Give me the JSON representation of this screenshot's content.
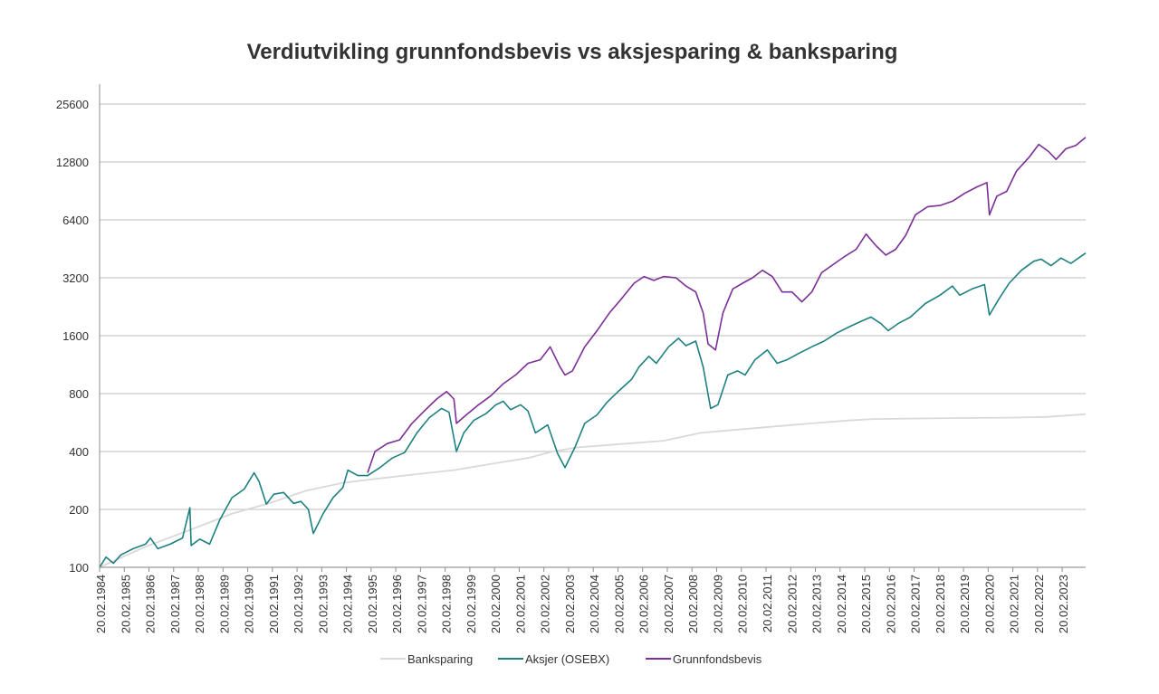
{
  "chart_data": {
    "type": "line",
    "title": "Verdiutvikling grunnfondsbevis vs aksjesparing & banksparing",
    "xlabel": "",
    "ylabel": "",
    "y_scale": "log2",
    "ylim": [
      100,
      25600
    ],
    "y_ticks": [
      "100",
      "200",
      "400",
      "800",
      "1600",
      "3200",
      "6400",
      "12800",
      "25600"
    ],
    "xlim": [
      1984.14,
      2024.1
    ],
    "x_ticks": [
      "20.02.1984",
      "20.02.1985",
      "20.02.1986",
      "20.02.1987",
      "20.02.1988",
      "20.02.1989",
      "20.02.1990",
      "20.02.1991",
      "20.02.1992",
      "20.02.1993",
      "20.02.1994",
      "20.02.1995",
      "20.02.1996",
      "20.02.1997",
      "20.02.1998",
      "20.02.1999",
      "20.02.2000",
      "20.02.2001",
      "20.02.2002",
      "20.02.2003",
      "20.02.2004",
      "20.02.2005",
      "20.02.2006",
      "20.02.2007",
      "20.02.2008",
      "20.02.2009",
      "20.02.2010",
      "20.02.2011",
      "20.02.2012",
      "20.02.2013",
      "20.02.2014",
      "20.02.2015",
      "20.02.2016",
      "20.02.2017",
      "20.02.2018",
      "20.02.2019",
      "20.02.2020",
      "20.02.2021",
      "20.02.2022",
      "20.02.2023"
    ],
    "grid": true,
    "legend_position": "bottom",
    "series": [
      {
        "name": "Banksparing",
        "color": "#d9d9d9",
        "points": [
          [
            1984.14,
            100
          ],
          [
            1986.0,
            128
          ],
          [
            1988.0,
            160
          ],
          [
            1989.5,
            190
          ],
          [
            1991.0,
            215
          ],
          [
            1992.5,
            250
          ],
          [
            1994.0,
            275
          ],
          [
            1995.5,
            290
          ],
          [
            1997.0,
            305
          ],
          [
            1998.5,
            320
          ],
          [
            2000.0,
            345
          ],
          [
            2001.5,
            370
          ],
          [
            2002.5,
            400
          ],
          [
            2003.5,
            420
          ],
          [
            2005.0,
            435
          ],
          [
            2007.0,
            455
          ],
          [
            2008.5,
            500
          ],
          [
            2010.0,
            520
          ],
          [
            2011.5,
            540
          ],
          [
            2013.0,
            560
          ],
          [
            2014.5,
            580
          ],
          [
            2015.5,
            590
          ],
          [
            2017.0,
            593
          ],
          [
            2019.0,
            597
          ],
          [
            2021.0,
            600
          ],
          [
            2022.5,
            605
          ],
          [
            2024.1,
            625
          ]
        ]
      },
      {
        "name": "Aksjer (OSEBX)",
        "color": "#1d8080",
        "points": [
          [
            1984.14,
            100
          ],
          [
            1984.4,
            113
          ],
          [
            1984.7,
            105
          ],
          [
            1985.0,
            116
          ],
          [
            1985.5,
            125
          ],
          [
            1986.0,
            132
          ],
          [
            1986.2,
            142
          ],
          [
            1986.5,
            125
          ],
          [
            1987.0,
            132
          ],
          [
            1987.5,
            142
          ],
          [
            1987.8,
            204
          ],
          [
            1987.85,
            130
          ],
          [
            1988.2,
            140
          ],
          [
            1988.6,
            132
          ],
          [
            1989.0,
            175
          ],
          [
            1989.5,
            230
          ],
          [
            1990.0,
            255
          ],
          [
            1990.4,
            310
          ],
          [
            1990.6,
            280
          ],
          [
            1990.9,
            213
          ],
          [
            1991.2,
            240
          ],
          [
            1991.6,
            245
          ],
          [
            1992.0,
            215
          ],
          [
            1992.3,
            220
          ],
          [
            1992.6,
            200
          ],
          [
            1992.8,
            150
          ],
          [
            1993.2,
            190
          ],
          [
            1993.6,
            230
          ],
          [
            1994.0,
            260
          ],
          [
            1994.2,
            320
          ],
          [
            1994.6,
            300
          ],
          [
            1995.0,
            300
          ],
          [
            1995.5,
            330
          ],
          [
            1996.0,
            370
          ],
          [
            1996.5,
            395
          ],
          [
            1997.0,
            500
          ],
          [
            1997.5,
            600
          ],
          [
            1998.0,
            670
          ],
          [
            1998.3,
            640
          ],
          [
            1998.6,
            400
          ],
          [
            1998.9,
            500
          ],
          [
            1999.3,
            580
          ],
          [
            1999.8,
            630
          ],
          [
            2000.2,
            700
          ],
          [
            2000.5,
            730
          ],
          [
            2000.8,
            660
          ],
          [
            2001.2,
            700
          ],
          [
            2001.5,
            650
          ],
          [
            2001.8,
            500
          ],
          [
            2002.3,
            550
          ],
          [
            2002.7,
            390
          ],
          [
            2003.0,
            330
          ],
          [
            2003.4,
            420
          ],
          [
            2003.8,
            560
          ],
          [
            2004.3,
            620
          ],
          [
            2004.7,
            720
          ],
          [
            2005.2,
            830
          ],
          [
            2005.7,
            950
          ],
          [
            2006.0,
            1100
          ],
          [
            2006.4,
            1250
          ],
          [
            2006.7,
            1150
          ],
          [
            2007.2,
            1400
          ],
          [
            2007.6,
            1550
          ],
          [
            2007.9,
            1420
          ],
          [
            2008.3,
            1500
          ],
          [
            2008.6,
            1100
          ],
          [
            2008.9,
            670
          ],
          [
            2009.2,
            700
          ],
          [
            2009.6,
            1000
          ],
          [
            2010.0,
            1050
          ],
          [
            2010.3,
            1000
          ],
          [
            2010.7,
            1200
          ],
          [
            2011.2,
            1350
          ],
          [
            2011.6,
            1150
          ],
          [
            2012.0,
            1200
          ],
          [
            2012.5,
            1300
          ],
          [
            2013.0,
            1400
          ],
          [
            2013.5,
            1500
          ],
          [
            2014.0,
            1650
          ],
          [
            2014.6,
            1800
          ],
          [
            2015.0,
            1900
          ],
          [
            2015.4,
            2000
          ],
          [
            2015.8,
            1850
          ],
          [
            2016.1,
            1700
          ],
          [
            2016.5,
            1850
          ],
          [
            2017.0,
            2000
          ],
          [
            2017.6,
            2350
          ],
          [
            2018.2,
            2600
          ],
          [
            2018.7,
            2900
          ],
          [
            2019.0,
            2600
          ],
          [
            2019.5,
            2800
          ],
          [
            2020.0,
            2950
          ],
          [
            2020.2,
            2050
          ],
          [
            2020.6,
            2500
          ],
          [
            2021.0,
            3000
          ],
          [
            2021.5,
            3500
          ],
          [
            2022.0,
            3900
          ],
          [
            2022.3,
            4000
          ],
          [
            2022.7,
            3700
          ],
          [
            2023.1,
            4050
          ],
          [
            2023.5,
            3800
          ],
          [
            2024.1,
            4300
          ]
        ]
      },
      {
        "name": "Grunnfondsbevis",
        "color": "#7b2f97",
        "points": [
          [
            1995.0,
            310
          ],
          [
            1995.3,
            400
          ],
          [
            1995.8,
            440
          ],
          [
            1996.3,
            460
          ],
          [
            1996.8,
            560
          ],
          [
            1997.3,
            650
          ],
          [
            1997.8,
            750
          ],
          [
            1998.2,
            820
          ],
          [
            1998.5,
            750
          ],
          [
            1998.6,
            560
          ],
          [
            1999.0,
            620
          ],
          [
            1999.5,
            700
          ],
          [
            2000.0,
            780
          ],
          [
            2000.5,
            900
          ],
          [
            2001.0,
            1000
          ],
          [
            2001.5,
            1150
          ],
          [
            2002.0,
            1200
          ],
          [
            2002.4,
            1400
          ],
          [
            2002.8,
            1100
          ],
          [
            2003.0,
            1000
          ],
          [
            2003.3,
            1050
          ],
          [
            2003.8,
            1400
          ],
          [
            2004.3,
            1700
          ],
          [
            2004.8,
            2100
          ],
          [
            2005.3,
            2500
          ],
          [
            2005.8,
            3000
          ],
          [
            2006.2,
            3250
          ],
          [
            2006.6,
            3100
          ],
          [
            2007.0,
            3250
          ],
          [
            2007.5,
            3200
          ],
          [
            2007.9,
            2900
          ],
          [
            2008.3,
            2700
          ],
          [
            2008.6,
            2100
          ],
          [
            2008.8,
            1450
          ],
          [
            2009.1,
            1350
          ],
          [
            2009.4,
            2100
          ],
          [
            2009.8,
            2800
          ],
          [
            2010.2,
            3000
          ],
          [
            2010.6,
            3200
          ],
          [
            2011.0,
            3500
          ],
          [
            2011.4,
            3250
          ],
          [
            2011.8,
            2700
          ],
          [
            2012.2,
            2700
          ],
          [
            2012.6,
            2400
          ],
          [
            2013.0,
            2700
          ],
          [
            2013.4,
            3400
          ],
          [
            2013.8,
            3700
          ],
          [
            2014.3,
            4100
          ],
          [
            2014.8,
            4500
          ],
          [
            2015.2,
            5400
          ],
          [
            2015.6,
            4700
          ],
          [
            2016.0,
            4200
          ],
          [
            2016.4,
            4500
          ],
          [
            2016.8,
            5300
          ],
          [
            2017.2,
            6800
          ],
          [
            2017.7,
            7500
          ],
          [
            2018.2,
            7600
          ],
          [
            2018.7,
            8000
          ],
          [
            2019.2,
            8800
          ],
          [
            2019.7,
            9500
          ],
          [
            2020.1,
            10000
          ],
          [
            2020.2,
            6800
          ],
          [
            2020.5,
            8500
          ],
          [
            2020.9,
            9000
          ],
          [
            2021.3,
            11500
          ],
          [
            2021.8,
            13500
          ],
          [
            2022.2,
            15800
          ],
          [
            2022.6,
            14500
          ],
          [
            2022.9,
            13200
          ],
          [
            2023.3,
            15000
          ],
          [
            2023.7,
            15600
          ],
          [
            2024.1,
            17200
          ]
        ]
      }
    ]
  }
}
